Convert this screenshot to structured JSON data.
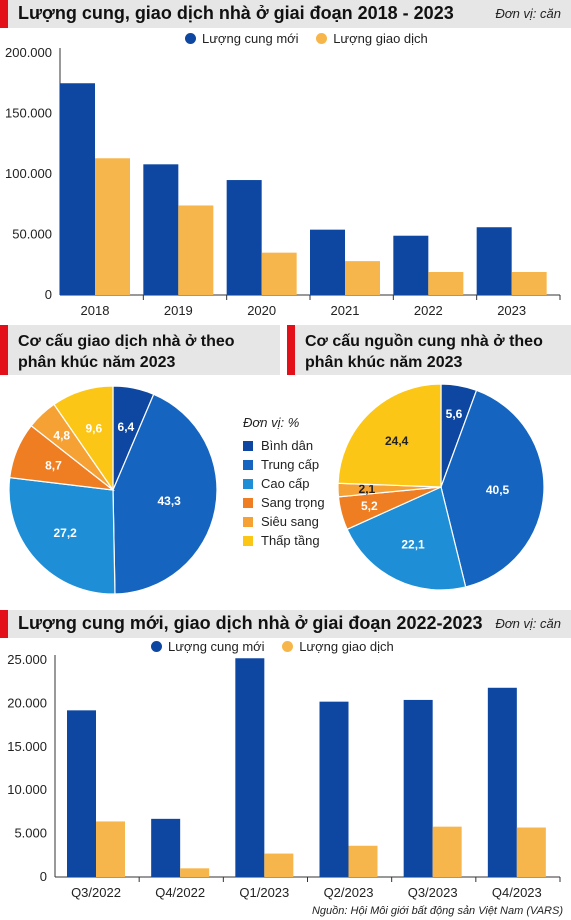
{
  "colors": {
    "supply": "#0d47a1",
    "transaction": "#f7b64b",
    "accent": "#e3101a",
    "header_bg": "#e6e6e6"
  },
  "chart1": {
    "title": "Lượng cung, giao dịch nhà ở giai đoạn 2018 - 2023",
    "unit": "Đơn vị: căn",
    "legend": [
      "Lượng cung mới",
      "Lượng giao dịch"
    ]
  },
  "pie_left": {
    "title": "Cơ cấu giao dịch nhà ở theo phân khúc năm 2023"
  },
  "pie_right": {
    "title": "Cơ cấu nguồn cung nhà ở theo phân khúc năm 2023"
  },
  "pie_legend": {
    "unit": "Đơn vị: %",
    "items": [
      "Bình dân",
      "Trung cấp",
      "Cao cấp",
      "Sang trọng",
      "Siêu sang",
      "Thấp tầng"
    ],
    "colors": [
      "#0d47a1",
      "#1565c0",
      "#1e8fd6",
      "#ef7d22",
      "#f6a133",
      "#fbc615"
    ]
  },
  "chart4": {
    "title": "Lượng cung mới, giao dịch nhà ở giai đoạn 2022-2023",
    "unit": "Đơn vị: căn",
    "legend": [
      "Lượng cung mới",
      "Lượng giao dịch"
    ]
  },
  "source": "Nguồn: Hội Môi giới bất động sản Việt Nam (VARS)",
  "chart_data": [
    {
      "type": "bar",
      "title": "Lượng cung, giao dịch nhà ở giai đoạn 2018 - 2023",
      "categories": [
        "2018",
        "2019",
        "2020",
        "2021",
        "2022",
        "2023"
      ],
      "series": [
        {
          "name": "Lượng cung mới",
          "values": [
            175000,
            108000,
            95000,
            54000,
            49000,
            56000
          ]
        },
        {
          "name": "Lượng giao dịch",
          "values": [
            113000,
            74000,
            35000,
            28000,
            19000,
            19000
          ]
        }
      ],
      "yticks": [
        "0",
        "50.000",
        "100.000",
        "150.000",
        "200.000"
      ],
      "ylim": [
        0,
        200000
      ],
      "grid": false,
      "legend": "top"
    },
    {
      "type": "pie",
      "title": "Cơ cấu giao dịch nhà ở theo phân khúc năm 2023",
      "labels": [
        "Bình dân",
        "Trung cấp",
        "Cao cấp",
        "Sang trọng",
        "Siêu sang",
        "Thấp tầng"
      ],
      "values": [
        6.4,
        43.3,
        27.2,
        8.7,
        4.8,
        9.6
      ],
      "value_labels": [
        "6,4",
        "43,3",
        "27,2",
        "8,7",
        "4,8",
        "9,6"
      ]
    },
    {
      "type": "pie",
      "title": "Cơ cấu nguồn cung nhà ở theo phân khúc năm 2023",
      "labels": [
        "Bình dân",
        "Trung cấp",
        "Cao cấp",
        "Sang trọng",
        "Siêu sang",
        "Thấp tầng"
      ],
      "values": [
        5.6,
        40.5,
        22.1,
        5.2,
        2.1,
        24.4
      ],
      "value_labels": [
        "5,6",
        "40,5",
        "22,1",
        "5,2",
        "2,1",
        "24,4"
      ]
    },
    {
      "type": "bar",
      "title": "Lượng cung mới, giao dịch nhà ở giai đoạn 2022-2023",
      "categories": [
        "Q3/2022",
        "Q4/2022",
        "Q1/2023",
        "Q2/2023",
        "Q3/2023",
        "Q4/2023"
      ],
      "series": [
        {
          "name": "Lượng cung mới",
          "values": [
            19200,
            6700,
            25200,
            20200,
            20400,
            21800
          ]
        },
        {
          "name": "Lượng giao dịch",
          "values": [
            6400,
            1000,
            2700,
            3600,
            5800,
            5700
          ]
        }
      ],
      "yticks": [
        "0",
        "5.000",
        "10.000",
        "15.000",
        "20.000",
        "25.000"
      ],
      "ylim": [
        0,
        25000
      ],
      "grid": false,
      "legend": "top"
    }
  ]
}
